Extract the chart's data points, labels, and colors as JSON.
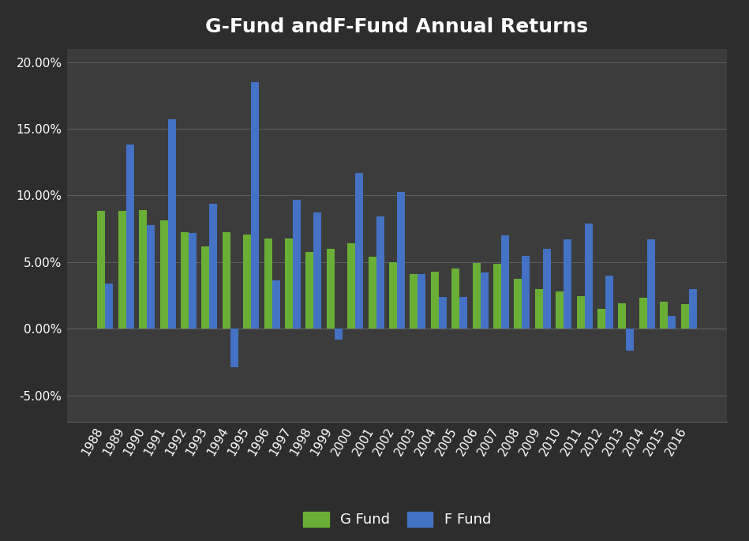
{
  "title": "G-Fund andF-Fund Annual Returns",
  "years": [
    1988,
    1989,
    1990,
    1991,
    1992,
    1993,
    1994,
    1995,
    1996,
    1997,
    1998,
    1999,
    2000,
    2001,
    2002,
    2003,
    2004,
    2005,
    2006,
    2007,
    2008,
    2009,
    2010,
    2011,
    2012,
    2013,
    2014,
    2015,
    2016
  ],
  "g_fund": [
    8.81,
    8.81,
    8.9,
    8.15,
    7.24,
    6.14,
    7.22,
    7.03,
    6.77,
    6.77,
    5.74,
    5.99,
    6.42,
    5.39,
    5.0,
    4.11,
    4.3,
    4.49,
    4.93,
    4.87,
    3.75,
    2.97,
    2.81,
    2.45,
    1.47,
    1.89,
    2.31,
    2.04,
    1.82
  ],
  "f_fund": [
    3.37,
    13.79,
    7.74,
    15.68,
    7.19,
    9.39,
    -2.92,
    18.47,
    3.63,
    9.65,
    8.69,
    -0.85,
    11.67,
    8.44,
    10.26,
    4.11,
    2.35,
    2.4,
    4.24,
    6.98,
    5.45,
    5.99,
    6.71,
    7.89,
    3.96,
    -1.68,
    6.73,
    0.97,
    2.95
  ],
  "g_color": "#6AAF35",
  "f_color": "#4472C4",
  "background_color": "#2D2D2D",
  "plot_bg_color": "#3C3C3C",
  "text_color": "#FFFFFF",
  "grid_color": "#606060",
  "ylim_min": -7,
  "ylim_max": 21,
  "yticks": [
    -5.0,
    0.0,
    5.0,
    10.0,
    15.0,
    20.0
  ],
  "ytick_labels": [
    "-5.00%",
    "0.00%",
    "5.00%",
    "10.00%",
    "15.00%",
    "20.00%"
  ],
  "legend_labels": [
    "G Fund",
    "F Fund"
  ],
  "bar_width": 0.38,
  "title_fontsize": 18,
  "tick_fontsize": 11,
  "legend_fontsize": 13
}
